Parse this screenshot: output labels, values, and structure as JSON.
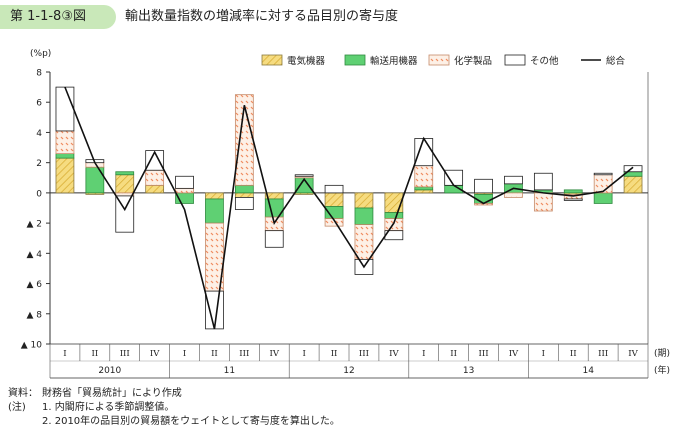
{
  "figure": {
    "number": "第 1-1-8③図",
    "title": "輸出数量指数の増減率に対する品目別の寄与度"
  },
  "chart_data": {
    "type": "bar",
    "unit_label": "(%p)",
    "ylim": [
      -10,
      8
    ],
    "y_ticks": [
      {
        "value": 8,
        "label": "8"
      },
      {
        "value": 6,
        "label": "6"
      },
      {
        "value": 4,
        "label": "4"
      },
      {
        "value": 2,
        "label": "2"
      },
      {
        "value": 0,
        "label": "0"
      },
      {
        "value": -2,
        "label": "▲ 2"
      },
      {
        "value": -4,
        "label": "▲ 4"
      },
      {
        "value": -6,
        "label": "▲ 6"
      },
      {
        "value": -8,
        "label": "▲ 8"
      },
      {
        "value": -10,
        "label": "▲ 10"
      }
    ],
    "categories": [
      "I",
      "II",
      "III",
      "IV",
      "I",
      "II",
      "III",
      "IV",
      "I",
      "II",
      "III",
      "IV",
      "I",
      "II",
      "III",
      "IV",
      "I",
      "II",
      "III",
      "IV"
    ],
    "years": [
      "2010",
      "11",
      "12",
      "13",
      "14"
    ],
    "period_label": "(期)",
    "year_label": "(年)",
    "series": [
      {
        "name": "電気機器",
        "type": "stacked-bar",
        "fill": "#f6dc80",
        "pattern": "diagonal",
        "values": [
          2.3,
          -0.1,
          1.2,
          0.5,
          0.0,
          -0.4,
          -0.3,
          -0.4,
          -0.1,
          -0.9,
          -1.0,
          -1.3,
          0.2,
          0.0,
          -0.1,
          0.0,
          0.0,
          -0.1,
          0.0,
          1.1
        ]
      },
      {
        "name": "輸送用機器",
        "type": "stacked-bar",
        "fill": "#5fd073",
        "values": [
          0.3,
          1.7,
          0.2,
          0.0,
          -0.7,
          -1.6,
          0.5,
          -1.2,
          1.0,
          -0.8,
          -1.1,
          -0.4,
          0.2,
          0.5,
          -0.6,
          0.6,
          0.2,
          0.2,
          -0.7,
          0.3
        ]
      },
      {
        "name": "化学製品",
        "type": "stacked-bar",
        "fill": "#fbe6d6",
        "pattern": "dots",
        "values": [
          1.5,
          0.3,
          -0.2,
          1.0,
          0.3,
          -4.5,
          6.0,
          -0.9,
          0.1,
          -0.5,
          -2.3,
          -0.8,
          1.4,
          0.0,
          -0.1,
          -0.3,
          -1.2,
          -0.3,
          1.2,
          0.0
        ]
      },
      {
        "name": "その他",
        "type": "stacked-bar",
        "fill": "#ffffff",
        "values": [
          2.9,
          0.2,
          -2.4,
          1.3,
          0.8,
          -2.5,
          -0.8,
          -1.1,
          0.1,
          0.5,
          -1.0,
          -0.6,
          1.8,
          1.0,
          0.9,
          0.5,
          1.1,
          -0.1,
          0.1,
          0.4
        ]
      },
      {
        "name": "総合",
        "type": "line",
        "color": "#111111",
        "values": [
          7.0,
          2.0,
          -1.1,
          2.7,
          -1.1,
          -9.0,
          5.8,
          -2.0,
          0.9,
          -1.8,
          -4.9,
          -2.0,
          3.6,
          0.5,
          -0.7,
          0.3,
          0.0,
          -0.2,
          0.1,
          1.7
        ]
      }
    ],
    "legend_position": "top-right",
    "grid": false
  },
  "notes": {
    "source_label": "資料：",
    "source_text": "財務省「貿易統計」により作成",
    "note_label": "(注)",
    "note1": "1. 内閣府による季節調整値。",
    "note2": "2. 2010年の品目別の貿易額をウェイトとして寄与度を算出した。"
  }
}
